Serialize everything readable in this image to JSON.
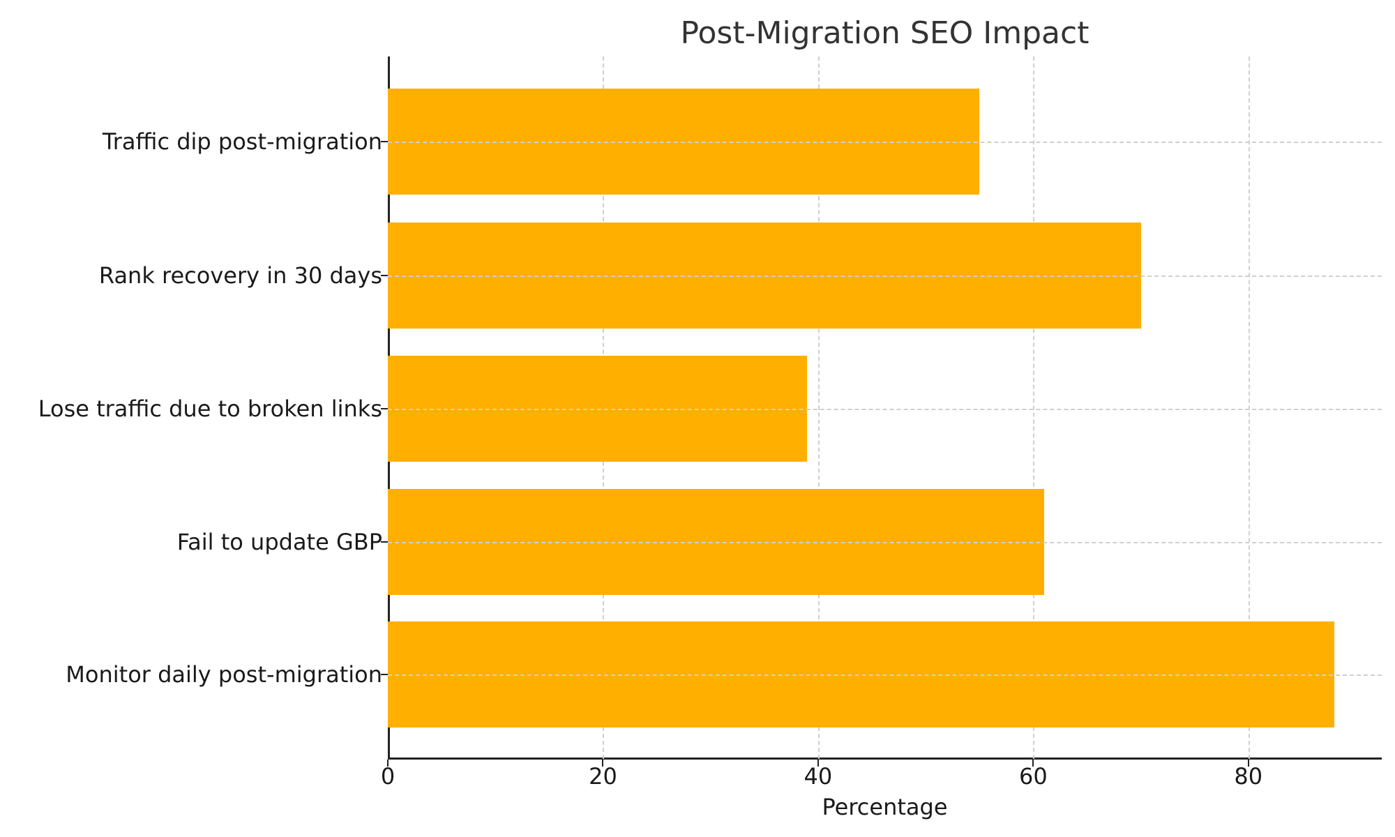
{
  "chart_data": {
    "type": "bar",
    "orientation": "horizontal",
    "title": "Post-Migration SEO Impact",
    "xlabel": "Percentage",
    "ylabel": "",
    "categories": [
      "Traffic dip post-migration",
      "Rank recovery in 30 days",
      "Lose traffic due to broken links",
      "Fail to update GBP",
      "Monitor daily post-migration"
    ],
    "values": [
      55,
      70,
      39,
      61,
      88
    ],
    "xlim": [
      0,
      92.4
    ],
    "xticks": [
      "0",
      "20",
      "40",
      "60",
      "80"
    ],
    "grid": true,
    "bar_color": "#FFAF00",
    "legend": null
  }
}
